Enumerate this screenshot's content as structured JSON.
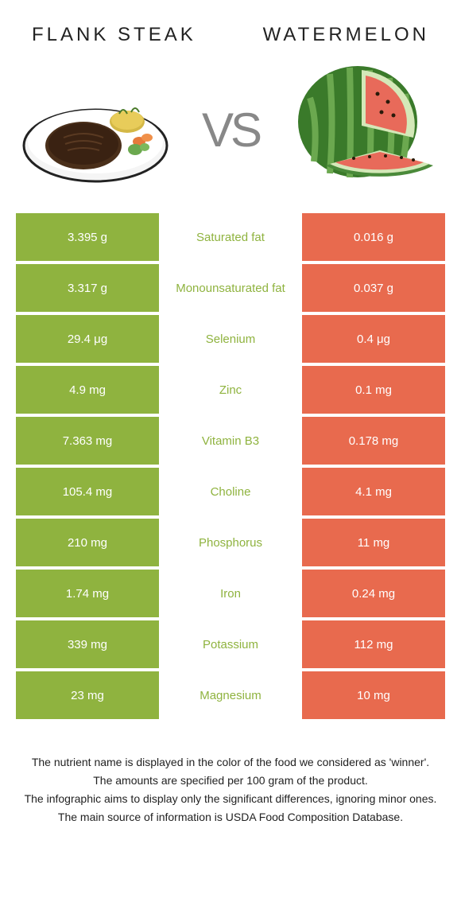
{
  "header": {
    "left_title": "FLANK STEAK",
    "right_title": "WATERMELON",
    "vs_label": "VS"
  },
  "colors": {
    "left": "#8fb33f",
    "right": "#e86a4e",
    "left_text": "#8fb33f",
    "right_text": "#e86a4e",
    "row_gap": "#ffffff"
  },
  "table": {
    "rows": [
      {
        "left": "3.395 g",
        "label": "Saturated fat",
        "right": "0.016 g",
        "winner": "left"
      },
      {
        "left": "3.317 g",
        "label": "Monounsaturated fat",
        "right": "0.037 g",
        "winner": "left"
      },
      {
        "left": "29.4 μg",
        "label": "Selenium",
        "right": "0.4 μg",
        "winner": "left"
      },
      {
        "left": "4.9 mg",
        "label": "Zinc",
        "right": "0.1 mg",
        "winner": "left"
      },
      {
        "left": "7.363 mg",
        "label": "Vitamin B3",
        "right": "0.178 mg",
        "winner": "left"
      },
      {
        "left": "105.4 mg",
        "label": "Choline",
        "right": "4.1 mg",
        "winner": "left"
      },
      {
        "left": "210 mg",
        "label": "Phosphorus",
        "right": "11 mg",
        "winner": "left"
      },
      {
        "left": "1.74 mg",
        "label": "Iron",
        "right": "0.24 mg",
        "winner": "left"
      },
      {
        "left": "339 mg",
        "label": "Potassium",
        "right": "112 mg",
        "winner": "left"
      },
      {
        "left": "23 mg",
        "label": "Magnesium",
        "right": "10 mg",
        "winner": "left"
      }
    ]
  },
  "footer": {
    "lines": [
      "The nutrient name is displayed in the color of the food we considered as 'winner'.",
      "The amounts are specified per 100 gram of the product.",
      "The infographic aims to display only the significant differences, ignoring minor ones.",
      "The main source of information is USDA Food Composition Database."
    ]
  }
}
